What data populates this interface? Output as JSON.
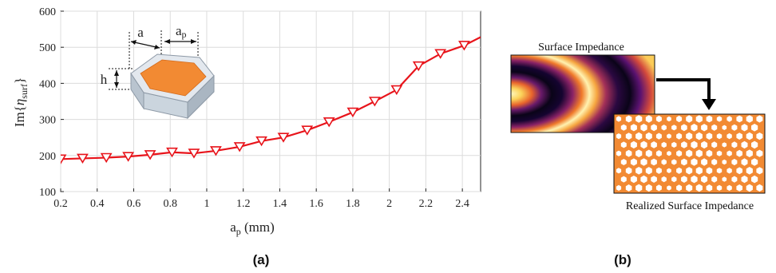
{
  "chart_data": {
    "type": "line",
    "title": "",
    "xlabel_main": "a",
    "xlabel_sub": "p",
    "xlabel_unit": " (mm)",
    "ylabel_main": "Im{",
    "ylabel_eta": "η",
    "ylabel_sub": "surf",
    "ylabel_close": "}",
    "xlim": [
      0.2,
      2.5
    ],
    "ylim": [
      100,
      600
    ],
    "xticks": [
      "0.2",
      "0.4",
      "0.6",
      "0.8",
      "1",
      "1.2",
      "1.4",
      "1.6",
      "1.8",
      "2",
      "2.2",
      "2.4"
    ],
    "xtick_values": [
      0.2,
      0.4,
      0.6,
      0.8,
      1.0,
      1.2,
      1.4,
      1.6,
      1.8,
      2.0,
      2.2,
      2.4
    ],
    "yticks": [
      "100",
      "200",
      "300",
      "400",
      "500",
      "600"
    ],
    "ytick_values": [
      100,
      200,
      300,
      400,
      500,
      600
    ],
    "grid": true,
    "series": [
      {
        "color": "#e8141b",
        "marker": "triangle-down",
        "x": [
          0.2,
          0.32,
          0.45,
          0.57,
          0.69,
          0.81,
          0.93,
          1.05,
          1.18,
          1.3,
          1.42,
          1.55,
          1.67,
          1.8,
          1.92,
          2.04,
          2.16,
          2.28,
          2.41,
          2.5
        ],
        "y": [
          190,
          192,
          194,
          197,
          202,
          209,
          206,
          213,
          224,
          240,
          250,
          270,
          293,
          320,
          350,
          382,
          448,
          482,
          505,
          528
        ],
        "marker_count": 19
      }
    ]
  },
  "inset": {
    "label_a": "a",
    "label_ap_main": "a",
    "label_ap_sub": "p",
    "label_h": "h"
  },
  "panel_b": {
    "top_label": "Surface Impedance",
    "bottom_label": "Realized Surface Impedance"
  },
  "captions": {
    "a": "(a)",
    "b": "(b)"
  }
}
